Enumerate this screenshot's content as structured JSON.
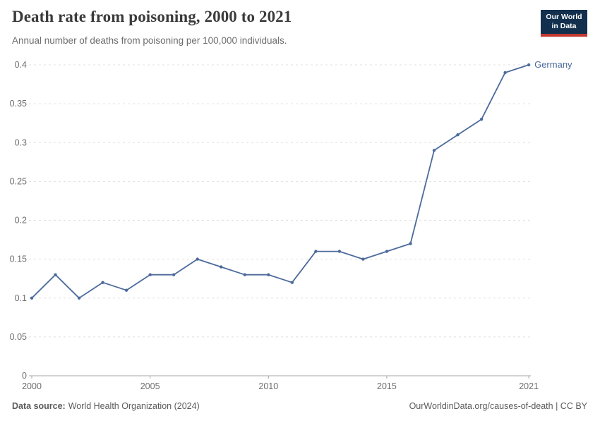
{
  "header": {
    "title": "Death rate from poisoning, 2000 to 2021",
    "subtitle": "Annual number of deaths from poisoning per 100,000 individuals.",
    "logo": {
      "line1": "Our World",
      "line2": "in Data"
    }
  },
  "chart_data": {
    "type": "line",
    "title": "Death rate from poisoning, 2000 to 2021",
    "xlabel": "",
    "ylabel": "",
    "x": [
      2000,
      2001,
      2002,
      2003,
      2004,
      2005,
      2006,
      2007,
      2008,
      2009,
      2010,
      2011,
      2012,
      2013,
      2014,
      2015,
      2016,
      2017,
      2018,
      2019,
      2020,
      2021
    ],
    "series": [
      {
        "name": "Germany",
        "color": "#4c6a9c",
        "values": [
          0.1,
          0.13,
          0.1,
          0.12,
          0.11,
          0.13,
          0.13,
          0.15,
          0.14,
          0.13,
          0.13,
          0.12,
          0.16,
          0.16,
          0.15,
          0.16,
          0.17,
          0.29,
          0.31,
          0.33,
          0.39,
          0.4
        ]
      }
    ],
    "ylim": [
      0,
      0.4
    ],
    "yticks": [
      0,
      0.05,
      0.1,
      0.15,
      0.2,
      0.25,
      0.3,
      0.35,
      0.4
    ],
    "ytick_labels": [
      "0",
      "0.05",
      "0.1",
      "0.15",
      "0.2",
      "0.25",
      "0.3",
      "0.35",
      "0.4"
    ],
    "xticks": [
      2000,
      2005,
      2010,
      2015,
      2021
    ],
    "grid": "horizontal-dashed",
    "legend_position": "end-of-line"
  },
  "footer": {
    "source_label": "Data source:",
    "source_text": "World Health Organization (2024)",
    "credit": "OurWorldinData.org/causes-of-death | CC BY"
  },
  "colors": {
    "line": "#4c6a9c",
    "grid": "#e0e0e0",
    "axis": "#a6a6a6",
    "tick_label": "#6e6e6e",
    "title": "#3b3b3b",
    "subtitle": "#6d6d6d",
    "footer": "#5b5b5b",
    "logo_bg": "#12304e",
    "logo_accent": "#c4392f"
  }
}
